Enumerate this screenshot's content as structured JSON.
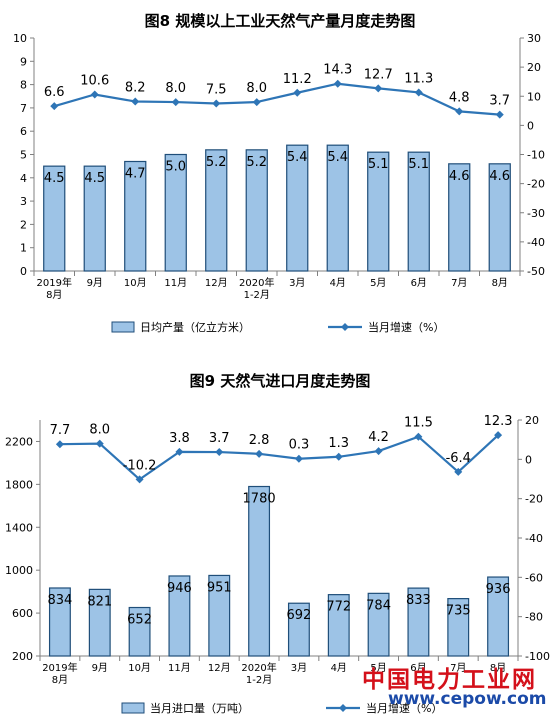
{
  "chart_data": [
    {
      "type": "bar",
      "title": "图8  规模以上工业天然气产量月度走势图",
      "categories": [
        [
          "2019年",
          "8月"
        ],
        [
          "9月"
        ],
        [
          "10月"
        ],
        [
          "11月"
        ],
        [
          "12月"
        ],
        [
          "2020年",
          "1-2月"
        ],
        [
          "3月"
        ],
        [
          "4月"
        ],
        [
          "5月"
        ],
        [
          "6月"
        ],
        [
          "7月"
        ],
        [
          "8月"
        ]
      ],
      "series": [
        {
          "name": "日均产量（亿立方米）",
          "kind": "bar",
          "axis": "left",
          "values": [
            4.5,
            4.5,
            4.7,
            5.0,
            5.2,
            5.2,
            5.4,
            5.4,
            5.1,
            5.1,
            4.6,
            4.6
          ],
          "labels": [
            "4.5",
            "4.5",
            "4.7",
            "5.0",
            "5.2",
            "5.2",
            "5.4",
            "5.4",
            "5.1",
            "5.1",
            "4.6",
            "4.6"
          ]
        },
        {
          "name": "当月增速（%）",
          "kind": "line",
          "axis": "right",
          "values": [
            6.6,
            10.6,
            8.2,
            8.0,
            7.5,
            8.0,
            11.2,
            14.3,
            12.7,
            11.3,
            4.8,
            3.7
          ],
          "labels": [
            "6.6",
            "10.6",
            "8.2",
            "8.0",
            "7.5",
            "8.0",
            "11.2",
            "14.3",
            "12.7",
            "11.3",
            "4.8",
            "3.7"
          ]
        }
      ],
      "y_left": {
        "min": 0,
        "max": 10,
        "ticks": [
          0,
          1,
          2,
          3,
          4,
          5,
          6,
          7,
          8,
          9,
          10
        ]
      },
      "y_right": {
        "min": -50,
        "max": 30,
        "ticks": [
          -50,
          -40,
          -30,
          -20,
          -10,
          0,
          10,
          20,
          30
        ]
      },
      "grid": false,
      "legend": "bottom",
      "colors": {
        "bar_fill": "#9dc3e6",
        "bar_stroke": "#1f4e79",
        "line": "#2e75b6"
      }
    },
    {
      "type": "bar",
      "title": "图9  天然气进口月度走势图",
      "categories": [
        [
          "2019年",
          "8月"
        ],
        [
          "9月"
        ],
        [
          "10月"
        ],
        [
          "11月"
        ],
        [
          "12月"
        ],
        [
          "2020年",
          "1-2月"
        ],
        [
          "3月"
        ],
        [
          "4月"
        ],
        [
          "5月"
        ],
        [
          "6月"
        ],
        [
          "7月"
        ],
        [
          "8月"
        ]
      ],
      "series": [
        {
          "name": "当月进口量（万吨）",
          "kind": "bar",
          "axis": "left",
          "values": [
            834,
            821,
            652,
            946,
            951,
            1780,
            692,
            772,
            784,
            833,
            735,
            936
          ],
          "labels": [
            "834",
            "821",
            "652",
            "946",
            "951",
            "1780",
            "692",
            "772",
            "784",
            "833",
            "735",
            "936"
          ]
        },
        {
          "name": "当月增速（%）",
          "kind": "line",
          "axis": "right",
          "values": [
            7.7,
            8.0,
            -10.2,
            3.8,
            3.7,
            2.8,
            0.3,
            1.3,
            4.2,
            11.5,
            -6.4,
            12.3
          ],
          "labels": [
            "7.7",
            "8.0",
            "-10.2",
            "3.8",
            "3.7",
            "2.8",
            "0.3",
            "1.3",
            "4.2",
            "11.5",
            "-6.4",
            "12.3"
          ]
        }
      ],
      "y_left": {
        "min": 200,
        "max": 2400,
        "ticks": [
          200,
          600,
          1000,
          1400,
          1800,
          2200
        ]
      },
      "y_right": {
        "min": -100,
        "max": 20,
        "ticks": [
          -100,
          -80,
          -60,
          -40,
          -20,
          0,
          20
        ]
      },
      "grid": false,
      "legend": "bottom",
      "colors": {
        "bar_fill": "#9dc3e6",
        "bar_stroke": "#1f4e79",
        "line": "#2e75b6"
      }
    }
  ],
  "watermark": {
    "text": "中国电力工业网",
    "url": "www.cepow.com"
  }
}
